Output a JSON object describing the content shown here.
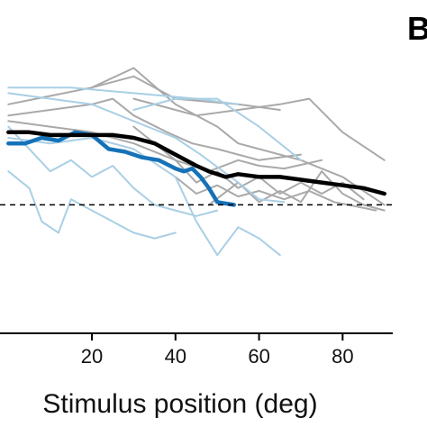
{
  "chart_data": {
    "type": "line",
    "panel_label": "B",
    "title": "",
    "xlabel": "Stimulus position (deg)",
    "ylabel": "",
    "x_ticks": [
      20,
      40,
      60,
      80
    ],
    "xlim": [
      -2,
      92
    ],
    "ylim": [
      0,
      1
    ],
    "grid": false,
    "legend": "none",
    "reference_line": {
      "y": 0.46,
      "style": "dashed",
      "color": "#000000"
    },
    "colors": {
      "gray": "#a9a9a9",
      "light_blue": "#a9cfe5",
      "blue": "#1572b8",
      "black": "#000000"
    },
    "series": [
      {
        "color": "gray",
        "points": [
          [
            0,
            0.82
          ],
          [
            10,
            0.85
          ],
          [
            20,
            0.88
          ],
          [
            30,
            0.92
          ],
          [
            40,
            0.84
          ],
          [
            55,
            0.82
          ],
          [
            65,
            0.8
          ]
        ]
      },
      {
        "color": "gray",
        "points": [
          [
            0,
            0.78
          ],
          [
            10,
            0.8
          ],
          [
            20,
            0.82
          ],
          [
            25,
            0.84
          ],
          [
            30,
            0.78
          ],
          [
            38,
            0.72
          ],
          [
            44,
            0.68
          ],
          [
            50,
            0.66
          ],
          [
            60,
            0.62
          ],
          [
            70,
            0.64
          ]
        ]
      },
      {
        "color": "gray",
        "points": [
          [
            0,
            0.76
          ],
          [
            10,
            0.74
          ],
          [
            20,
            0.72
          ],
          [
            30,
            0.68
          ],
          [
            40,
            0.62
          ],
          [
            48,
            0.58
          ],
          [
            55,
            0.62
          ],
          [
            60,
            0.6
          ],
          [
            66,
            0.59
          ],
          [
            75,
            0.62
          ]
        ]
      },
      {
        "color": "gray",
        "points": [
          [
            20,
            0.88
          ],
          [
            30,
            0.95
          ],
          [
            40,
            0.82
          ],
          [
            50,
            0.74
          ],
          [
            55,
            0.68
          ],
          [
            60,
            0.66
          ],
          [
            70,
            0.62
          ],
          [
            80,
            0.56
          ],
          [
            90,
            0.46
          ]
        ]
      },
      {
        "color": "gray",
        "points": [
          [
            30,
            0.84
          ],
          [
            40,
            0.8
          ],
          [
            45,
            0.78
          ],
          [
            55,
            0.8
          ],
          [
            65,
            0.82
          ],
          [
            72,
            0.84
          ],
          [
            80,
            0.72
          ],
          [
            90,
            0.62
          ]
        ]
      },
      {
        "color": "gray",
        "points": [
          [
            30,
            0.74
          ],
          [
            40,
            0.62
          ],
          [
            45,
            0.54
          ],
          [
            50,
            0.58
          ],
          [
            55,
            0.52
          ],
          [
            60,
            0.56
          ],
          [
            65,
            0.5
          ],
          [
            70,
            0.54
          ],
          [
            75,
            0.5
          ],
          [
            80,
            0.54
          ],
          [
            85,
            0.48
          ]
        ]
      },
      {
        "color": "gray",
        "points": [
          [
            40,
            0.56
          ],
          [
            45,
            0.5
          ],
          [
            50,
            0.53
          ],
          [
            55,
            0.49
          ],
          [
            60,
            0.51
          ],
          [
            66,
            0.48
          ],
          [
            72,
            0.51
          ],
          [
            78,
            0.47
          ],
          [
            88,
            0.44
          ]
        ]
      },
      {
        "color": "gray",
        "points": [
          [
            48,
            0.46
          ],
          [
            55,
            0.54
          ],
          [
            60,
            0.47
          ],
          [
            65,
            0.51
          ],
          [
            70,
            0.47
          ],
          [
            75,
            0.58
          ],
          [
            80,
            0.5
          ],
          [
            85,
            0.46
          ],
          [
            90,
            0.44
          ]
        ]
      },
      {
        "color": "light_blue",
        "points": [
          [
            0,
            0.86
          ],
          [
            10,
            0.84
          ],
          [
            20,
            0.82
          ],
          [
            30,
            0.76
          ],
          [
            40,
            0.7
          ],
          [
            46,
            0.64
          ],
          [
            55,
            0.54
          ],
          [
            60,
            0.48
          ],
          [
            66,
            0.47
          ]
        ]
      },
      {
        "color": "light_blue",
        "points": [
          [
            0,
            0.74
          ],
          [
            5,
            0.66
          ],
          [
            10,
            0.58
          ],
          [
            15,
            0.62
          ],
          [
            20,
            0.56
          ],
          [
            25,
            0.6
          ],
          [
            30,
            0.52
          ],
          [
            35,
            0.46
          ],
          [
            40,
            0.44
          ],
          [
            45,
            0.42
          ],
          [
            50,
            0.44
          ]
        ]
      },
      {
        "color": "light_blue",
        "points": [
          [
            0,
            0.58
          ],
          [
            5,
            0.52
          ],
          [
            8,
            0.4
          ],
          [
            12,
            0.36
          ],
          [
            15,
            0.48
          ],
          [
            20,
            0.44
          ],
          [
            25,
            0.4
          ],
          [
            30,
            0.36
          ],
          [
            35,
            0.34
          ],
          [
            40,
            0.36
          ]
        ]
      },
      {
        "color": "light_blue",
        "points": [
          [
            0,
            0.7
          ],
          [
            10,
            0.68
          ],
          [
            20,
            0.7
          ],
          [
            30,
            0.66
          ],
          [
            40,
            0.56
          ],
          [
            45,
            0.4
          ],
          [
            50,
            0.28
          ],
          [
            55,
            0.38
          ],
          [
            60,
            0.34
          ],
          [
            65,
            0.28
          ]
        ]
      },
      {
        "color": "light_blue",
        "points": [
          [
            30,
            0.8
          ],
          [
            40,
            0.84
          ],
          [
            50,
            0.84
          ],
          [
            56,
            0.78
          ],
          [
            60,
            0.74
          ],
          [
            70,
            0.62
          ]
        ]
      },
      {
        "color": "light_blue",
        "points": [
          [
            0,
            0.88
          ],
          [
            15,
            0.88
          ],
          [
            30,
            0.86
          ],
          [
            45,
            0.84
          ],
          [
            55,
            0.82
          ]
        ]
      },
      {
        "color": "blue",
        "width": 4.5,
        "points": [
          [
            0,
            0.68
          ],
          [
            4,
            0.68
          ],
          [
            8,
            0.7
          ],
          [
            12,
            0.69
          ],
          [
            16,
            0.72
          ],
          [
            20,
            0.71
          ],
          [
            24,
            0.66
          ],
          [
            28,
            0.65
          ],
          [
            32,
            0.63
          ],
          [
            36,
            0.62
          ],
          [
            40,
            0.59
          ],
          [
            42,
            0.58
          ],
          [
            44,
            0.59
          ],
          [
            46,
            0.56
          ],
          [
            48,
            0.52
          ],
          [
            50,
            0.47
          ],
          [
            54,
            0.46
          ]
        ]
      },
      {
        "color": "black",
        "width": 4.5,
        "points": [
          [
            0,
            0.72
          ],
          [
            5,
            0.72
          ],
          [
            10,
            0.71
          ],
          [
            15,
            0.71
          ],
          [
            20,
            0.71
          ],
          [
            25,
            0.71
          ],
          [
            30,
            0.7
          ],
          [
            35,
            0.68
          ],
          [
            40,
            0.64
          ],
          [
            45,
            0.6
          ],
          [
            48,
            0.58
          ],
          [
            52,
            0.56
          ],
          [
            55,
            0.57
          ],
          [
            60,
            0.56
          ],
          [
            65,
            0.56
          ],
          [
            70,
            0.55
          ],
          [
            75,
            0.54
          ],
          [
            80,
            0.53
          ],
          [
            85,
            0.52
          ],
          [
            90,
            0.5
          ]
        ]
      }
    ]
  }
}
